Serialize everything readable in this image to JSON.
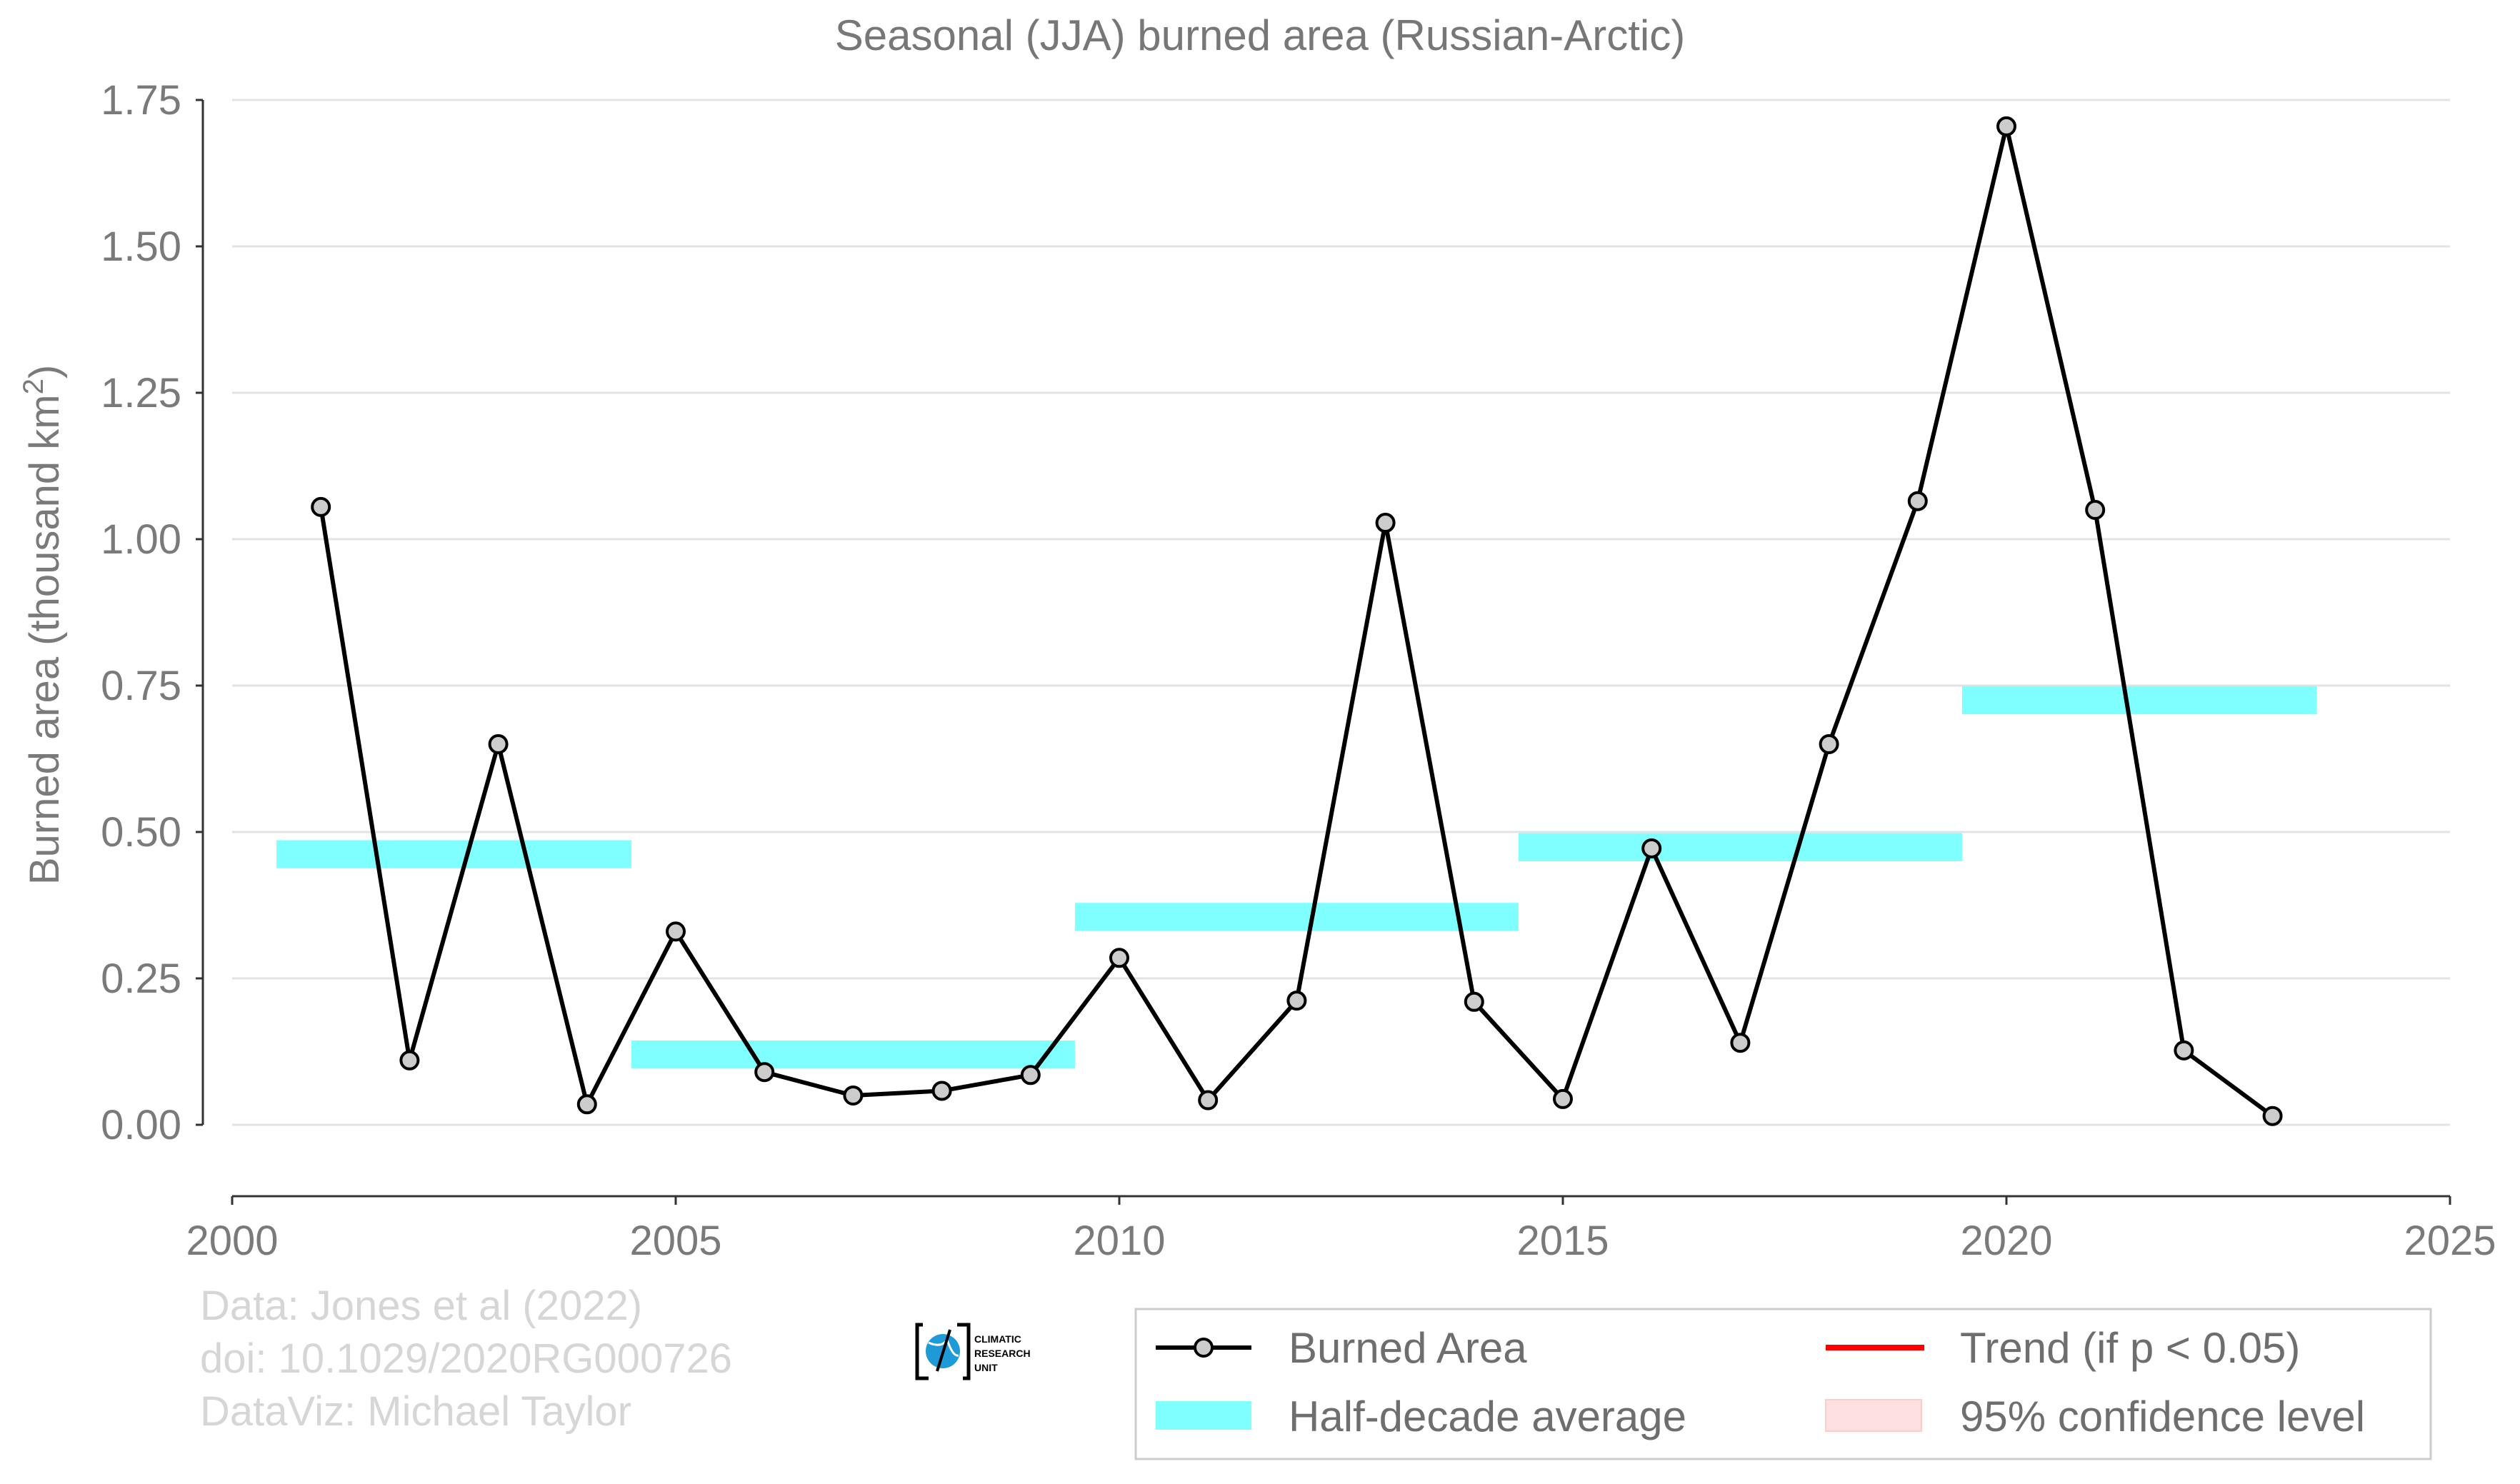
{
  "chart_data": {
    "type": "line",
    "title": "Seasonal (JJA) burned area (Russian-Arctic)",
    "ylabel": "Burned area (thousand km²)",
    "ylabel_main": "Burned area (thousand km",
    "ylabel_sup": "2",
    "ylabel_close": ")",
    "xlabel": "",
    "xlim": [
      2000,
      2025
    ],
    "ylim": [
      0,
      1.75
    ],
    "xticks": [
      2000,
      2005,
      2010,
      2015,
      2020,
      2025
    ],
    "yticks": [
      0,
      0.25,
      0.5,
      0.75,
      1.0,
      1.25,
      1.5,
      1.75
    ],
    "ytick_labels": [
      "0.00",
      "0.25",
      "0.50",
      "0.75",
      "1.00",
      "1.25",
      "1.50",
      "1.75"
    ],
    "grid": "horizontal",
    "series": [
      {
        "name": "Burned Area",
        "color": "#000000",
        "marker_fill": "#cccccc",
        "x": [
          2001,
          2002,
          2003,
          2004,
          2005,
          2006,
          2007,
          2008,
          2009,
          2010,
          2011,
          2012,
          2013,
          2014,
          2015,
          2016,
          2017,
          2018,
          2019,
          2020,
          2021,
          2022,
          2023
        ],
        "y": [
          1.055,
          0.11,
          0.65,
          0.035,
          0.33,
          0.09,
          0.05,
          0.058,
          0.085,
          0.285,
          0.042,
          0.212,
          1.028,
          0.21,
          0.044,
          0.472,
          0.14,
          0.65,
          1.065,
          1.705,
          1.05,
          0.127,
          0.015
        ]
      }
    ],
    "half_decade_average": {
      "name": "Half-decade average",
      "color": "#7fffff",
      "segments": [
        {
          "x_start": 2000.5,
          "x_end": 2004.5,
          "y": 0.462
        },
        {
          "x_start": 2004.5,
          "x_end": 2009.5,
          "y": 0.12
        },
        {
          "x_start": 2009.5,
          "x_end": 2014.5,
          "y": 0.355
        },
        {
          "x_start": 2014.5,
          "x_end": 2019.5,
          "y": 0.474
        },
        {
          "x_start": 2019.5,
          "x_end": 2023.5,
          "y": 0.725
        }
      ]
    },
    "legend": {
      "placement": "bottom-right",
      "entries": [
        {
          "label": "Burned Area",
          "kind": "line-marker",
          "color": "#000000"
        },
        {
          "label": "Trend (if p < 0.05)",
          "kind": "line",
          "color": "#ff0000"
        },
        {
          "label": "Half-decade average",
          "kind": "band",
          "color": "#7fffff"
        },
        {
          "label": "95% confidence level",
          "kind": "patch",
          "color": "#ffe0e0"
        }
      ]
    },
    "credits": [
      "Data: Jones et al (2022)",
      "doi: 10.1029/2020RG000726",
      "DataViz: Michael Taylor"
    ],
    "logo": {
      "name": "Climatic Research Unit logo",
      "lines": [
        "CLIMATIC",
        "RESEARCH",
        "UNIT"
      ],
      "color": "#1e9ad6"
    }
  }
}
